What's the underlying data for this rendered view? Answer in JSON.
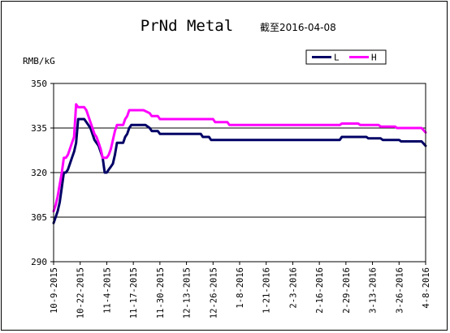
{
  "chart_data": {
    "type": "line",
    "title": "PrNd Metal",
    "subtitle": "截至2016-04-08",
    "ylabel": "RMB/kG",
    "ylim": [
      290,
      350
    ],
    "yticks": [
      290,
      305,
      320,
      335,
      350
    ],
    "grid": "horizontal",
    "legend_position": "top-right",
    "x_range": [
      "2015-10-09",
      "2016-04-08"
    ],
    "xticks": [
      "10-9-2015",
      "10-22-2015",
      "11-4-2015",
      "11-17-2015",
      "11-30-2015",
      "12-13-2015",
      "12-26-2015",
      "1-8-2016",
      "1-21-2016",
      "2-3-2016",
      "2-16-2016",
      "2-29-2016",
      "3-13-2016",
      "3-26-2016",
      "4-8-2016"
    ],
    "series": [
      {
        "name": "L",
        "color": "#000066",
        "points": [
          [
            "2015-10-09",
            303
          ],
          [
            "2015-10-10",
            305
          ],
          [
            "2015-10-11",
            307
          ],
          [
            "2015-10-12",
            310
          ],
          [
            "2015-10-13",
            315
          ],
          [
            "2015-10-14",
            320
          ],
          [
            "2015-10-15",
            320
          ],
          [
            "2015-10-16",
            321
          ],
          [
            "2015-10-17",
            323
          ],
          [
            "2015-10-18",
            325
          ],
          [
            "2015-10-19",
            327
          ],
          [
            "2015-10-20",
            330
          ],
          [
            "2015-10-21",
            338
          ],
          [
            "2015-10-22",
            338
          ],
          [
            "2015-10-23",
            338
          ],
          [
            "2015-10-24",
            338
          ],
          [
            "2015-10-25",
            337
          ],
          [
            "2015-10-26",
            336
          ],
          [
            "2015-10-27",
            335
          ],
          [
            "2015-10-28",
            333
          ],
          [
            "2015-10-29",
            331
          ],
          [
            "2015-10-30",
            330
          ],
          [
            "2015-10-31",
            329
          ],
          [
            "2015-11-01",
            327
          ],
          [
            "2015-11-02",
            325
          ],
          [
            "2015-11-03",
            320
          ],
          [
            "2015-11-04",
            320
          ],
          [
            "2015-11-05",
            321
          ],
          [
            "2015-11-06",
            322
          ],
          [
            "2015-11-07",
            323
          ],
          [
            "2015-11-08",
            326
          ],
          [
            "2015-11-09",
            330
          ],
          [
            "2015-11-10",
            330
          ],
          [
            "2015-11-11",
            330
          ],
          [
            "2015-11-12",
            330
          ],
          [
            "2015-11-13",
            332
          ],
          [
            "2015-11-14",
            333
          ],
          [
            "2015-11-15",
            335
          ],
          [
            "2015-11-16",
            336
          ],
          [
            "2015-11-20",
            336
          ],
          [
            "2015-11-23",
            336
          ],
          [
            "2015-11-25",
            335
          ],
          [
            "2015-11-26",
            334
          ],
          [
            "2015-11-29",
            334
          ],
          [
            "2015-11-30",
            333
          ],
          [
            "2015-12-20",
            333
          ],
          [
            "2015-12-21",
            332
          ],
          [
            "2015-12-24",
            332
          ],
          [
            "2015-12-25",
            331
          ],
          [
            "2016-02-26",
            331
          ],
          [
            "2016-02-27",
            332
          ],
          [
            "2016-03-10",
            332
          ],
          [
            "2016-03-11",
            331.5
          ],
          [
            "2016-03-17",
            331.5
          ],
          [
            "2016-03-18",
            331
          ],
          [
            "2016-03-26",
            331
          ],
          [
            "2016-03-27",
            330.5
          ],
          [
            "2016-04-06",
            330.5
          ],
          [
            "2016-04-08",
            329
          ]
        ]
      },
      {
        "name": "H",
        "color": "#ff00ff",
        "points": [
          [
            "2015-10-09",
            307
          ],
          [
            "2015-10-10",
            309
          ],
          [
            "2015-10-11",
            312
          ],
          [
            "2015-10-12",
            316
          ],
          [
            "2015-10-13",
            320
          ],
          [
            "2015-10-14",
            325
          ],
          [
            "2015-10-15",
            325
          ],
          [
            "2015-10-16",
            326
          ],
          [
            "2015-10-17",
            328
          ],
          [
            "2015-10-18",
            330
          ],
          [
            "2015-10-19",
            332
          ],
          [
            "2015-10-20",
            343
          ],
          [
            "2015-10-21",
            342
          ],
          [
            "2015-10-22",
            342
          ],
          [
            "2015-10-23",
            342
          ],
          [
            "2015-10-24",
            342
          ],
          [
            "2015-10-25",
            341
          ],
          [
            "2015-10-26",
            339
          ],
          [
            "2015-10-27",
            337
          ],
          [
            "2015-10-28",
            335
          ],
          [
            "2015-10-29",
            333
          ],
          [
            "2015-10-30",
            332
          ],
          [
            "2015-10-31",
            330
          ],
          [
            "2015-11-01",
            328
          ],
          [
            "2015-11-02",
            325
          ],
          [
            "2015-11-03",
            325
          ],
          [
            "2015-11-04",
            325
          ],
          [
            "2015-11-05",
            326
          ],
          [
            "2015-11-06",
            328
          ],
          [
            "2015-11-07",
            331
          ],
          [
            "2015-11-08",
            334
          ],
          [
            "2015-11-09",
            336
          ],
          [
            "2015-11-10",
            336
          ],
          [
            "2015-11-11",
            336
          ],
          [
            "2015-11-12",
            336
          ],
          [
            "2015-11-13",
            338
          ],
          [
            "2015-11-14",
            339
          ],
          [
            "2015-11-15",
            341
          ],
          [
            "2015-11-16",
            341
          ],
          [
            "2015-11-20",
            341
          ],
          [
            "2015-11-22",
            341
          ],
          [
            "2015-11-25",
            340
          ],
          [
            "2015-11-26",
            339
          ],
          [
            "2015-11-29",
            339
          ],
          [
            "2015-11-30",
            338
          ],
          [
            "2015-12-26",
            338
          ],
          [
            "2015-12-27",
            337
          ],
          [
            "2016-01-02",
            337
          ],
          [
            "2016-01-03",
            336
          ],
          [
            "2016-02-26",
            336
          ],
          [
            "2016-02-27",
            336.5
          ],
          [
            "2016-03-06",
            336.5
          ],
          [
            "2016-03-07",
            336
          ],
          [
            "2016-03-16",
            336
          ],
          [
            "2016-03-17",
            335.5
          ],
          [
            "2016-03-24",
            335.5
          ],
          [
            "2016-03-25",
            335
          ],
          [
            "2016-04-06",
            335
          ],
          [
            "2016-04-08",
            333.5
          ]
        ]
      }
    ]
  }
}
